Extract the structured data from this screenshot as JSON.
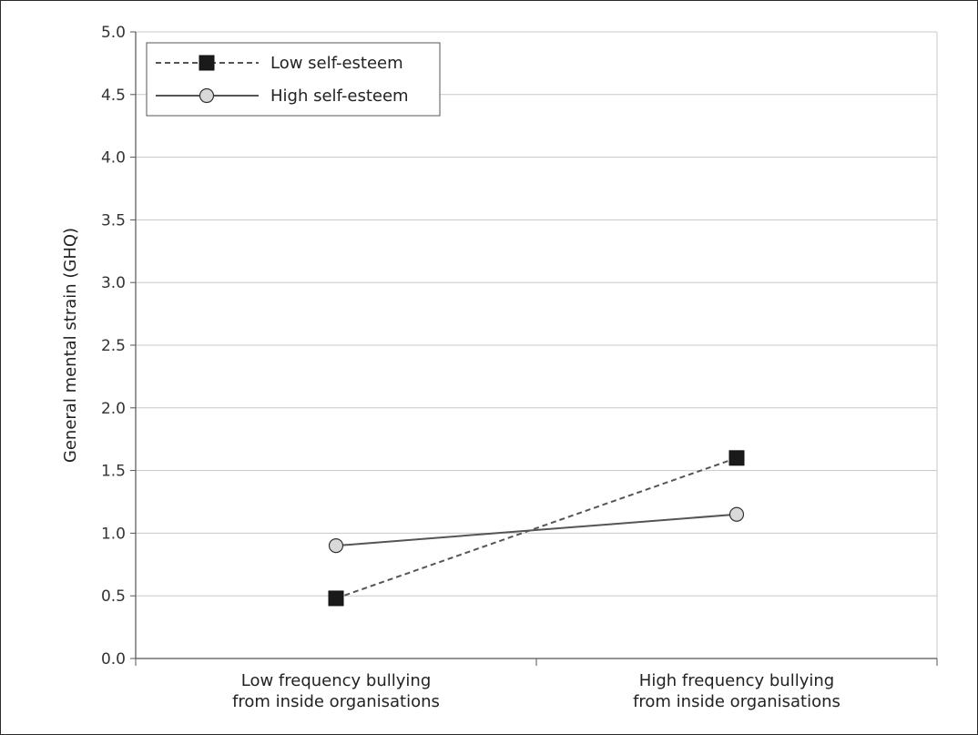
{
  "chart_data": {
    "type": "line",
    "title": "",
    "xlabel": "",
    "ylabel": "General mental strain (GHQ)",
    "ylim": [
      0,
      5
    ],
    "yticks": [
      "0.0",
      "0.5",
      "1.0",
      "1.5",
      "2.0",
      "2.5",
      "3.0",
      "3.5",
      "4.0",
      "4.5",
      "5.0"
    ],
    "categories": [
      [
        "Low frequency bullying",
        "from inside organisations"
      ],
      [
        "High frequency bullying",
        "from inside organisations"
      ]
    ],
    "series": [
      {
        "name": "Low self-esteem",
        "values": [
          0.48,
          1.6
        ],
        "marker": "square",
        "line": "dashed",
        "color": "#555555",
        "marker_fill": "#1a1a1a"
      },
      {
        "name": "High self-esteem",
        "values": [
          0.9,
          1.15
        ],
        "marker": "circle",
        "line": "solid",
        "color": "#555555",
        "marker_fill": "#d9d9d9"
      }
    ],
    "grid": true,
    "legend_position": "top-left"
  }
}
